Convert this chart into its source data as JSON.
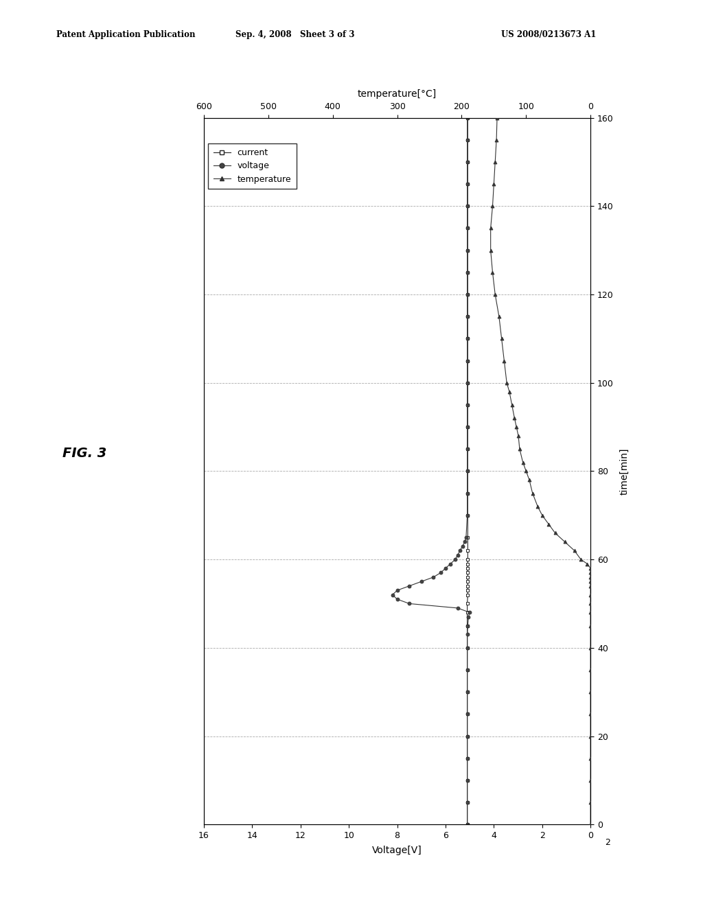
{
  "fig_width": 10.24,
  "fig_height": 13.2,
  "background_color": "#ffffff",
  "header_left": "Patent Application Publication",
  "header_mid": "Sep. 4, 2008   Sheet 3 of 3",
  "header_right": "US 2008/0213673 A1",
  "fig_label": "FIG. 3",
  "time_label": "time[min]",
  "voltage_label": "Voltage[V]",
  "temp_label": "temperature[°C]",
  "time_ticks": [
    0,
    20,
    40,
    60,
    80,
    100,
    120,
    140,
    160
  ],
  "voltage_ticks": [
    0,
    2,
    4,
    6,
    8,
    10,
    12,
    14,
    16
  ],
  "temp_ticks": [
    0,
    100,
    200,
    300,
    400,
    500,
    600
  ],
  "time_lim": [
    0,
    160
  ],
  "voltage_lim": [
    0,
    16
  ],
  "temp_lim": [
    0,
    600
  ],
  "grid_color": "#aaaaaa",
  "current_time": [
    0,
    5,
    10,
    15,
    20,
    25,
    30,
    35,
    40,
    45,
    48,
    50,
    52,
    53,
    54,
    55,
    56,
    57,
    58,
    59,
    60,
    62,
    65,
    70,
    75,
    80,
    85,
    90,
    95,
    100,
    105,
    110,
    115,
    120,
    125,
    130,
    135,
    140,
    145,
    150,
    155,
    160
  ],
  "current_volts": [
    5.1,
    5.1,
    5.1,
    5.1,
    5.1,
    5.1,
    5.1,
    5.1,
    5.1,
    5.1,
    5.1,
    5.1,
    5.08,
    5.08,
    5.08,
    5.08,
    5.08,
    5.08,
    5.08,
    5.08,
    5.08,
    5.08,
    5.08,
    5.08,
    5.08,
    5.08,
    5.08,
    5.08,
    5.08,
    5.08,
    5.08,
    5.08,
    5.08,
    5.08,
    5.08,
    5.08,
    5.08,
    5.08,
    5.08,
    5.08,
    5.08,
    5.08
  ],
  "voltage_time": [
    0,
    5,
    10,
    15,
    20,
    25,
    30,
    35,
    40,
    43,
    45,
    47,
    48,
    49,
    50,
    51,
    52,
    53,
    54,
    55,
    56,
    57,
    58,
    59,
    60,
    61,
    62,
    63,
    64,
    65,
    70,
    75,
    80,
    85,
    90,
    95,
    100,
    105,
    110,
    115,
    120,
    125,
    130,
    135,
    140,
    145,
    150,
    155,
    160
  ],
  "voltage_volts": [
    5.1,
    5.1,
    5.1,
    5.1,
    5.1,
    5.1,
    5.1,
    5.1,
    5.1,
    5.1,
    5.08,
    5.05,
    5.0,
    5.5,
    7.5,
    8.0,
    8.2,
    8.0,
    7.5,
    7.0,
    6.5,
    6.2,
    6.0,
    5.8,
    5.6,
    5.5,
    5.4,
    5.3,
    5.2,
    5.15,
    5.1,
    5.1,
    5.1,
    5.1,
    5.1,
    5.1,
    5.1,
    5.1,
    5.1,
    5.1,
    5.1,
    5.1,
    5.1,
    5.1,
    5.1,
    5.1,
    5.1,
    5.1,
    5.1
  ],
  "temp_time": [
    0,
    5,
    10,
    15,
    20,
    25,
    30,
    35,
    40,
    45,
    48,
    50,
    52,
    54,
    55,
    56,
    57,
    58,
    59,
    60,
    62,
    64,
    66,
    68,
    70,
    72,
    75,
    78,
    80,
    82,
    85,
    88,
    90,
    92,
    95,
    98,
    100,
    105,
    110,
    115,
    120,
    125,
    130,
    135,
    140,
    145,
    150,
    155,
    160
  ],
  "temp_celsius": [
    0,
    0,
    0,
    0,
    0,
    0,
    0,
    0,
    0,
    0,
    0,
    0,
    0,
    0,
    0,
    0,
    0,
    0,
    5,
    15,
    25,
    40,
    55,
    65,
    75,
    82,
    90,
    95,
    100,
    105,
    110,
    112,
    115,
    118,
    122,
    126,
    130,
    134,
    138,
    142,
    148,
    152,
    155,
    155,
    152,
    150,
    148,
    146,
    145
  ]
}
